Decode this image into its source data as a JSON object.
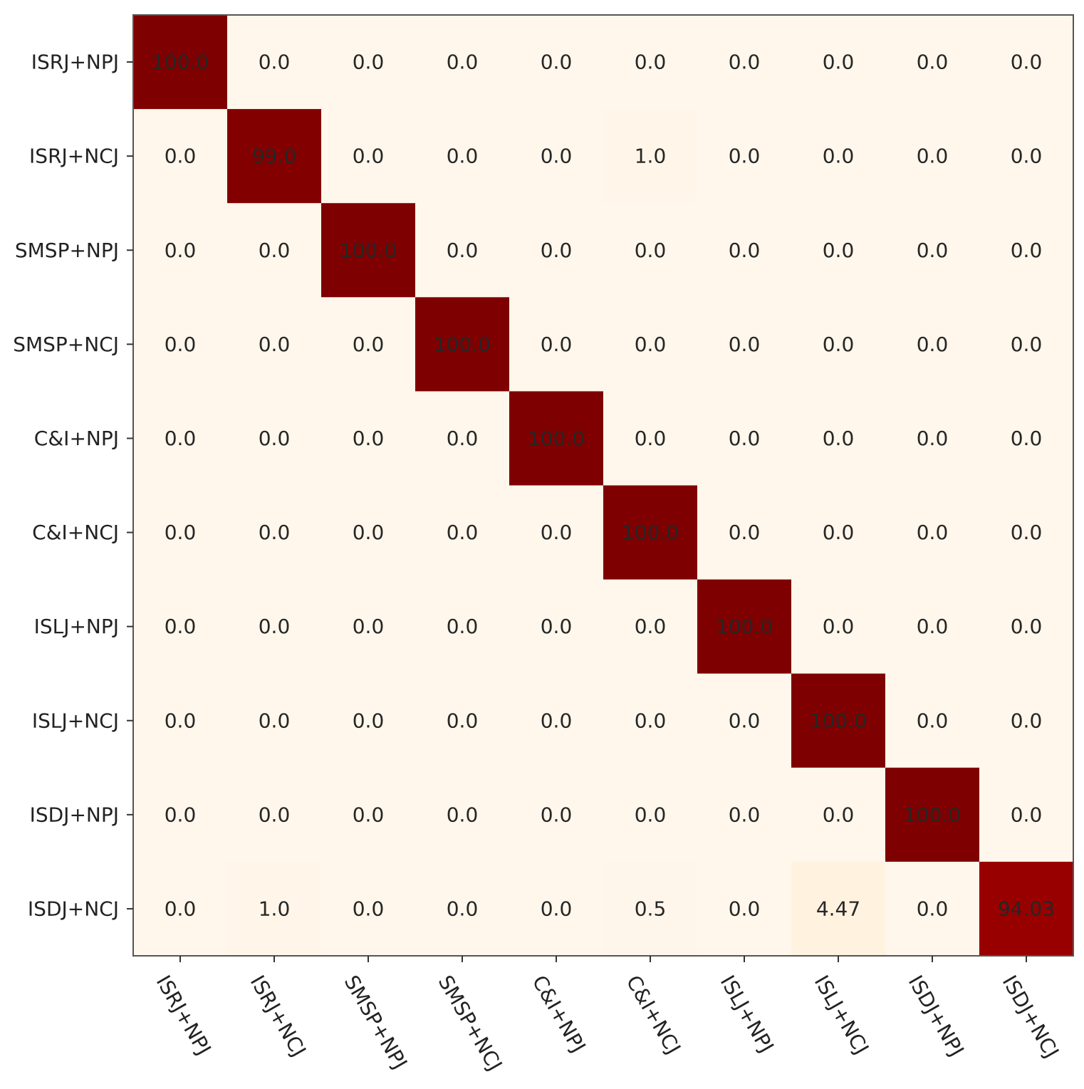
{
  "chart_data": {
    "type": "heatmap",
    "row_labels": [
      "ISRJ+NPJ",
      "ISRJ+NCJ",
      "SMSP+NPJ",
      "SMSP+NCJ",
      "C&I+NPJ",
      "C&I+NCJ",
      "ISLJ+NPJ",
      "ISLJ+NCJ",
      "ISDJ+NPJ",
      "ISDJ+NCJ"
    ],
    "col_labels": [
      "ISRJ+NPJ",
      "ISRJ+NCJ",
      "SMSP+NPJ",
      "SMSP+NCJ",
      "C&I+NPJ",
      "C&I+NCJ",
      "ISLJ+NPJ",
      "ISLJ+NCJ",
      "ISDJ+NPJ",
      "ISDJ+NCJ"
    ],
    "values": [
      [
        100.0,
        0.0,
        0.0,
        0.0,
        0.0,
        0.0,
        0.0,
        0.0,
        0.0,
        0.0
      ],
      [
        0.0,
        99.0,
        0.0,
        0.0,
        0.0,
        1.0,
        0.0,
        0.0,
        0.0,
        0.0
      ],
      [
        0.0,
        0.0,
        100.0,
        0.0,
        0.0,
        0.0,
        0.0,
        0.0,
        0.0,
        0.0
      ],
      [
        0.0,
        0.0,
        0.0,
        100.0,
        0.0,
        0.0,
        0.0,
        0.0,
        0.0,
        0.0
      ],
      [
        0.0,
        0.0,
        0.0,
        0.0,
        100.0,
        0.0,
        0.0,
        0.0,
        0.0,
        0.0
      ],
      [
        0.0,
        0.0,
        0.0,
        0.0,
        0.0,
        100.0,
        0.0,
        0.0,
        0.0,
        0.0
      ],
      [
        0.0,
        0.0,
        0.0,
        0.0,
        0.0,
        0.0,
        100.0,
        0.0,
        0.0,
        0.0
      ],
      [
        0.0,
        0.0,
        0.0,
        0.0,
        0.0,
        0.0,
        0.0,
        100.0,
        0.0,
        0.0
      ],
      [
        0.0,
        0.0,
        0.0,
        0.0,
        0.0,
        0.0,
        0.0,
        0.0,
        100.0,
        0.0
      ],
      [
        0.0,
        1.0,
        0.0,
        0.0,
        0.0,
        0.5,
        0.0,
        4.47,
        0.0,
        94.03
      ]
    ],
    "value_labels": [
      [
        "100.0",
        "0.0",
        "0.0",
        "0.0",
        "0.0",
        "0.0",
        "0.0",
        "0.0",
        "0.0",
        "0.0"
      ],
      [
        "0.0",
        "99.0",
        "0.0",
        "0.0",
        "0.0",
        "1.0",
        "0.0",
        "0.0",
        "0.0",
        "0.0"
      ],
      [
        "0.0",
        "0.0",
        "100.0",
        "0.0",
        "0.0",
        "0.0",
        "0.0",
        "0.0",
        "0.0",
        "0.0"
      ],
      [
        "0.0",
        "0.0",
        "0.0",
        "100.0",
        "0.0",
        "0.0",
        "0.0",
        "0.0",
        "0.0",
        "0.0"
      ],
      [
        "0.0",
        "0.0",
        "0.0",
        "0.0",
        "100.0",
        "0.0",
        "0.0",
        "0.0",
        "0.0",
        "0.0"
      ],
      [
        "0.0",
        "0.0",
        "0.0",
        "0.0",
        "0.0",
        "100.0",
        "0.0",
        "0.0",
        "0.0",
        "0.0"
      ],
      [
        "0.0",
        "0.0",
        "0.0",
        "0.0",
        "0.0",
        "0.0",
        "100.0",
        "0.0",
        "0.0",
        "0.0"
      ],
      [
        "0.0",
        "0.0",
        "0.0",
        "0.0",
        "0.0",
        "0.0",
        "0.0",
        "100.0",
        "0.0",
        "0.0"
      ],
      [
        "0.0",
        "0.0",
        "0.0",
        "0.0",
        "0.0",
        "0.0",
        "0.0",
        "0.0",
        "100.0",
        "0.0"
      ],
      [
        "0.0",
        "1.0",
        "0.0",
        "0.0",
        "0.0",
        "0.5",
        "0.0",
        "4.47",
        "0.0",
        "94.03"
      ]
    ],
    "value_range": [
      0,
      100
    ],
    "colormap": "OrRd",
    "colors": {
      "low": "#fff7ec",
      "high": "#7f0000",
      "text": "#262626"
    },
    "title": "",
    "xlabel": "",
    "ylabel": "",
    "grid": false,
    "legend": "none"
  }
}
